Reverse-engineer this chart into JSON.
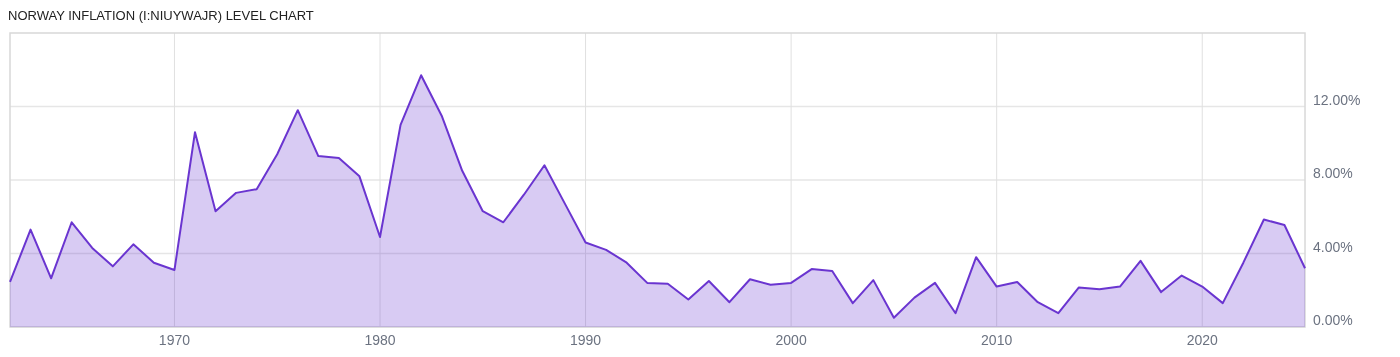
{
  "chart_data": {
    "type": "area",
    "title": "NORWAY INFLATION (I:NIUYWAJR) LEVEL CHART",
    "x": [
      1962,
      1963,
      1964,
      1965,
      1966,
      1967,
      1968,
      1969,
      1970,
      1971,
      1972,
      1973,
      1974,
      1975,
      1976,
      1977,
      1978,
      1979,
      1980,
      1981,
      1982,
      1983,
      1984,
      1985,
      1986,
      1987,
      1988,
      1989,
      1990,
      1991,
      1992,
      1993,
      1994,
      1995,
      1996,
      1997,
      1998,
      1999,
      2000,
      2001,
      2002,
      2003,
      2004,
      2005,
      2006,
      2007,
      2008,
      2009,
      2010,
      2011,
      2012,
      2013,
      2014,
      2015,
      2016,
      2017,
      2018,
      2019,
      2020,
      2021,
      2022,
      2023,
      2024,
      2025
    ],
    "series": [
      {
        "color": "#6a35d0",
        "values": [
          2.45,
          5.3,
          2.65,
          5.7,
          4.3,
          3.3,
          4.5,
          3.5,
          3.1,
          10.6,
          6.3,
          7.3,
          7.5,
          9.4,
          11.8,
          9.3,
          9.2,
          8.2,
          4.9,
          11.0,
          13.7,
          11.5,
          8.5,
          6.3,
          5.7,
          7.2,
          8.8,
          6.7,
          4.6,
          4.2,
          3.5,
          2.4,
          2.35,
          1.5,
          2.5,
          1.35,
          2.6,
          2.3,
          2.4,
          3.15,
          3.05,
          1.3,
          2.55,
          0.5,
          1.6,
          2.4,
          0.75,
          3.8,
          2.2,
          2.45,
          1.35,
          0.75,
          2.15,
          2.05,
          2.2,
          3.6,
          1.9,
          2.8,
          2.2,
          1.3,
          3.5,
          5.85,
          5.55,
          3.2
        ]
      }
    ],
    "xlim": [
      1962,
      2025
    ],
    "xticks": [
      1970,
      1980,
      1990,
      2000,
      2010,
      2020
    ],
    "ylim": [
      0,
      16
    ],
    "yticks": [
      {
        "value": 0,
        "label": "0.00%"
      },
      {
        "value": 4,
        "label": "4.00%"
      },
      {
        "value": 8,
        "label": "8.00%"
      },
      {
        "value": 12,
        "label": "12.00%"
      }
    ],
    "grid": true
  }
}
